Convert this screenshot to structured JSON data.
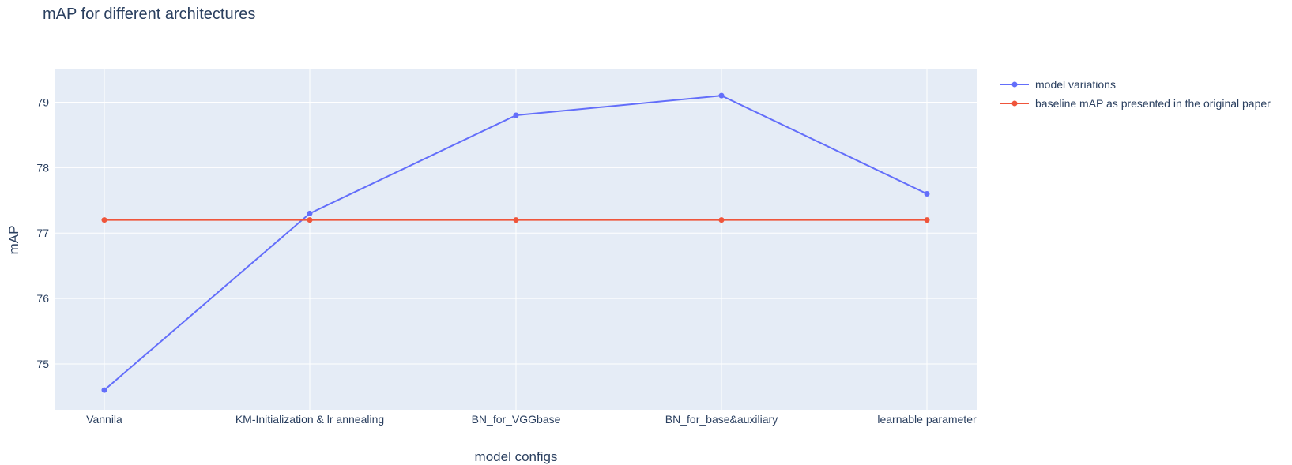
{
  "chart_data": {
    "type": "line",
    "title": "mAP for different architectures",
    "xlabel": "model configs",
    "ylabel": "mAP",
    "categories": [
      "Vannila",
      "KM-Initialization & lr annealing",
      "BN_for_VGGbase",
      "BN_for_base&auxiliary",
      "learnable parameter"
    ],
    "ylim": [
      74.3,
      79.5
    ],
    "yticks": [
      75,
      76,
      77,
      78,
      79
    ],
    "grid": true,
    "legend_position": "top-right",
    "series": [
      {
        "name": "model variations",
        "color": "#636efa",
        "values": [
          74.6,
          77.3,
          78.8,
          79.1,
          77.6
        ]
      },
      {
        "name": "baseline mAP as presented in the original paper",
        "color": "#ef553b",
        "values": [
          77.2,
          77.2,
          77.2,
          77.2,
          77.2
        ]
      }
    ],
    "plot_background": "#e5ecf6",
    "text_color": "#2a3f5f"
  }
}
